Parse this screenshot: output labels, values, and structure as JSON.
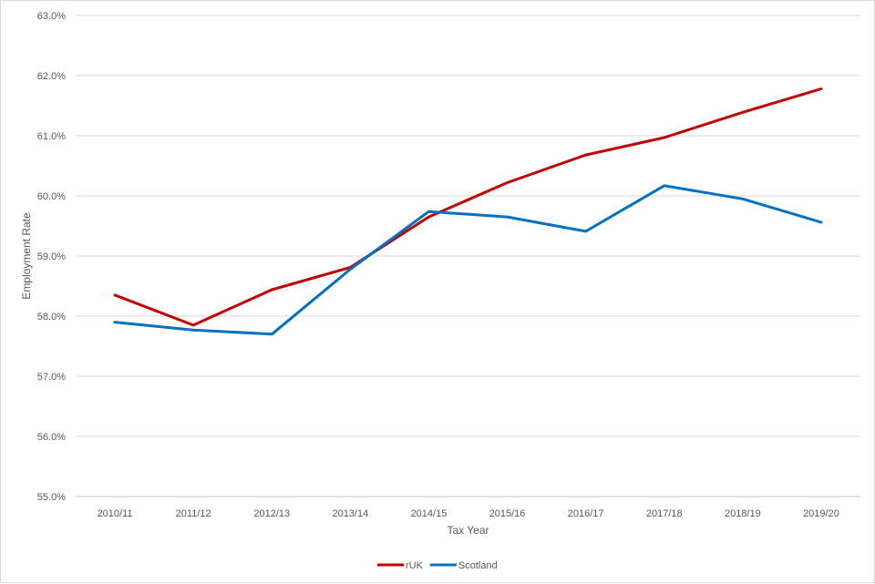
{
  "chart_data": {
    "type": "line",
    "xlabel": "Tax Year",
    "ylabel": "Employment Rate",
    "categories": [
      "2010/11",
      "2011/12",
      "2012/13",
      "2013/14",
      "2014/15",
      "2015/16",
      "2016/17",
      "2017/18",
      "2018/19",
      "2019/20"
    ],
    "ylim": [
      55.0,
      63.0
    ],
    "yticks": [
      "55.0%",
      "56.0%",
      "57.0%",
      "58.0%",
      "59.0%",
      "60.0%",
      "61.0%",
      "62.0%",
      "63.0%"
    ],
    "grid": true,
    "legend_position": "bottom",
    "series": [
      {
        "name": "rUK",
        "color": "#c00000",
        "values": [
          58.35,
          57.85,
          58.44,
          58.81,
          59.65,
          60.22,
          60.68,
          60.97,
          61.39,
          61.78
        ]
      },
      {
        "name": "Scotland",
        "color": "#0070c0",
        "values": [
          57.9,
          57.77,
          57.7,
          58.78,
          59.74,
          59.65,
          59.41,
          60.17,
          59.95,
          59.56
        ]
      }
    ]
  }
}
